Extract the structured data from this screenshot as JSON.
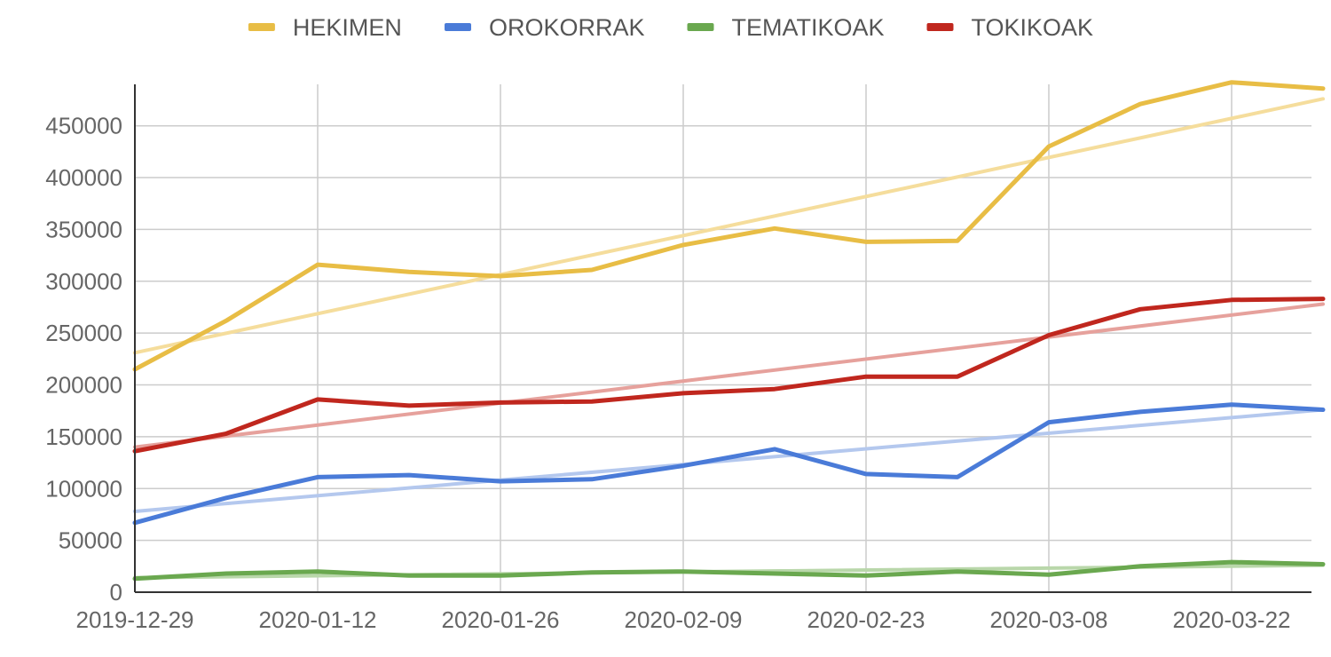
{
  "chart_data": {
    "type": "line",
    "legend_position": "top",
    "grid": true,
    "ylim": [
      0,
      490000
    ],
    "yticks": [
      0,
      50000,
      100000,
      150000,
      200000,
      250000,
      300000,
      350000,
      400000,
      450000
    ],
    "ytick_labels": [
      "0",
      "50000",
      "100000",
      "150000",
      "200000",
      "250000",
      "300000",
      "350000",
      "400000",
      "450000"
    ],
    "x": [
      "2019-12-29",
      "2020-01-05",
      "2020-01-12",
      "2020-01-19",
      "2020-01-26",
      "2020-02-02",
      "2020-02-09",
      "2020-02-16",
      "2020-02-23",
      "2020-03-01",
      "2020-03-08",
      "2020-03-15",
      "2020-03-22",
      "2020-03-29"
    ],
    "xtick_labels": [
      "2019-12-29",
      "2020-01-12",
      "2020-01-26",
      "2020-02-09",
      "2020-02-23",
      "2020-03-08",
      "2020-03-22"
    ],
    "trendlines": true,
    "series": [
      {
        "name": "HEKIMEN",
        "color": "#e8bd45",
        "trend_color": "#f5dd9c",
        "values": [
          215000,
          262000,
          316000,
          309000,
          305000,
          311000,
          335000,
          351000,
          338000,
          339000,
          430000,
          471000,
          492000,
          486000
        ],
        "trend": [
          231000,
          476000
        ]
      },
      {
        "name": "OROKORRAK",
        "color": "#4a7bd8",
        "trend_color": "#b4c8ee",
        "values": [
          67000,
          91000,
          111000,
          113000,
          107000,
          109000,
          122000,
          138000,
          114000,
          111000,
          164000,
          174000,
          181000,
          176000
        ],
        "trend": [
          78000,
          176000
        ]
      },
      {
        "name": "TEMATIKOAK",
        "color": "#6aa84f",
        "trend_color": "#b9d7aa",
        "values": [
          13000,
          18000,
          20000,
          16000,
          16000,
          19000,
          20000,
          18000,
          16000,
          20000,
          17000,
          25000,
          29000,
          27000
        ],
        "trend": [
          14000,
          26000
        ]
      },
      {
        "name": "TOKIKOAK",
        "color": "#c0271e",
        "trend_color": "#e6a19c",
        "values": [
          136000,
          153000,
          186000,
          180000,
          183000,
          184000,
          192000,
          196000,
          208000,
          208000,
          248000,
          273000,
          282000,
          283000
        ],
        "trend": [
          140000,
          278000
        ]
      }
    ]
  }
}
